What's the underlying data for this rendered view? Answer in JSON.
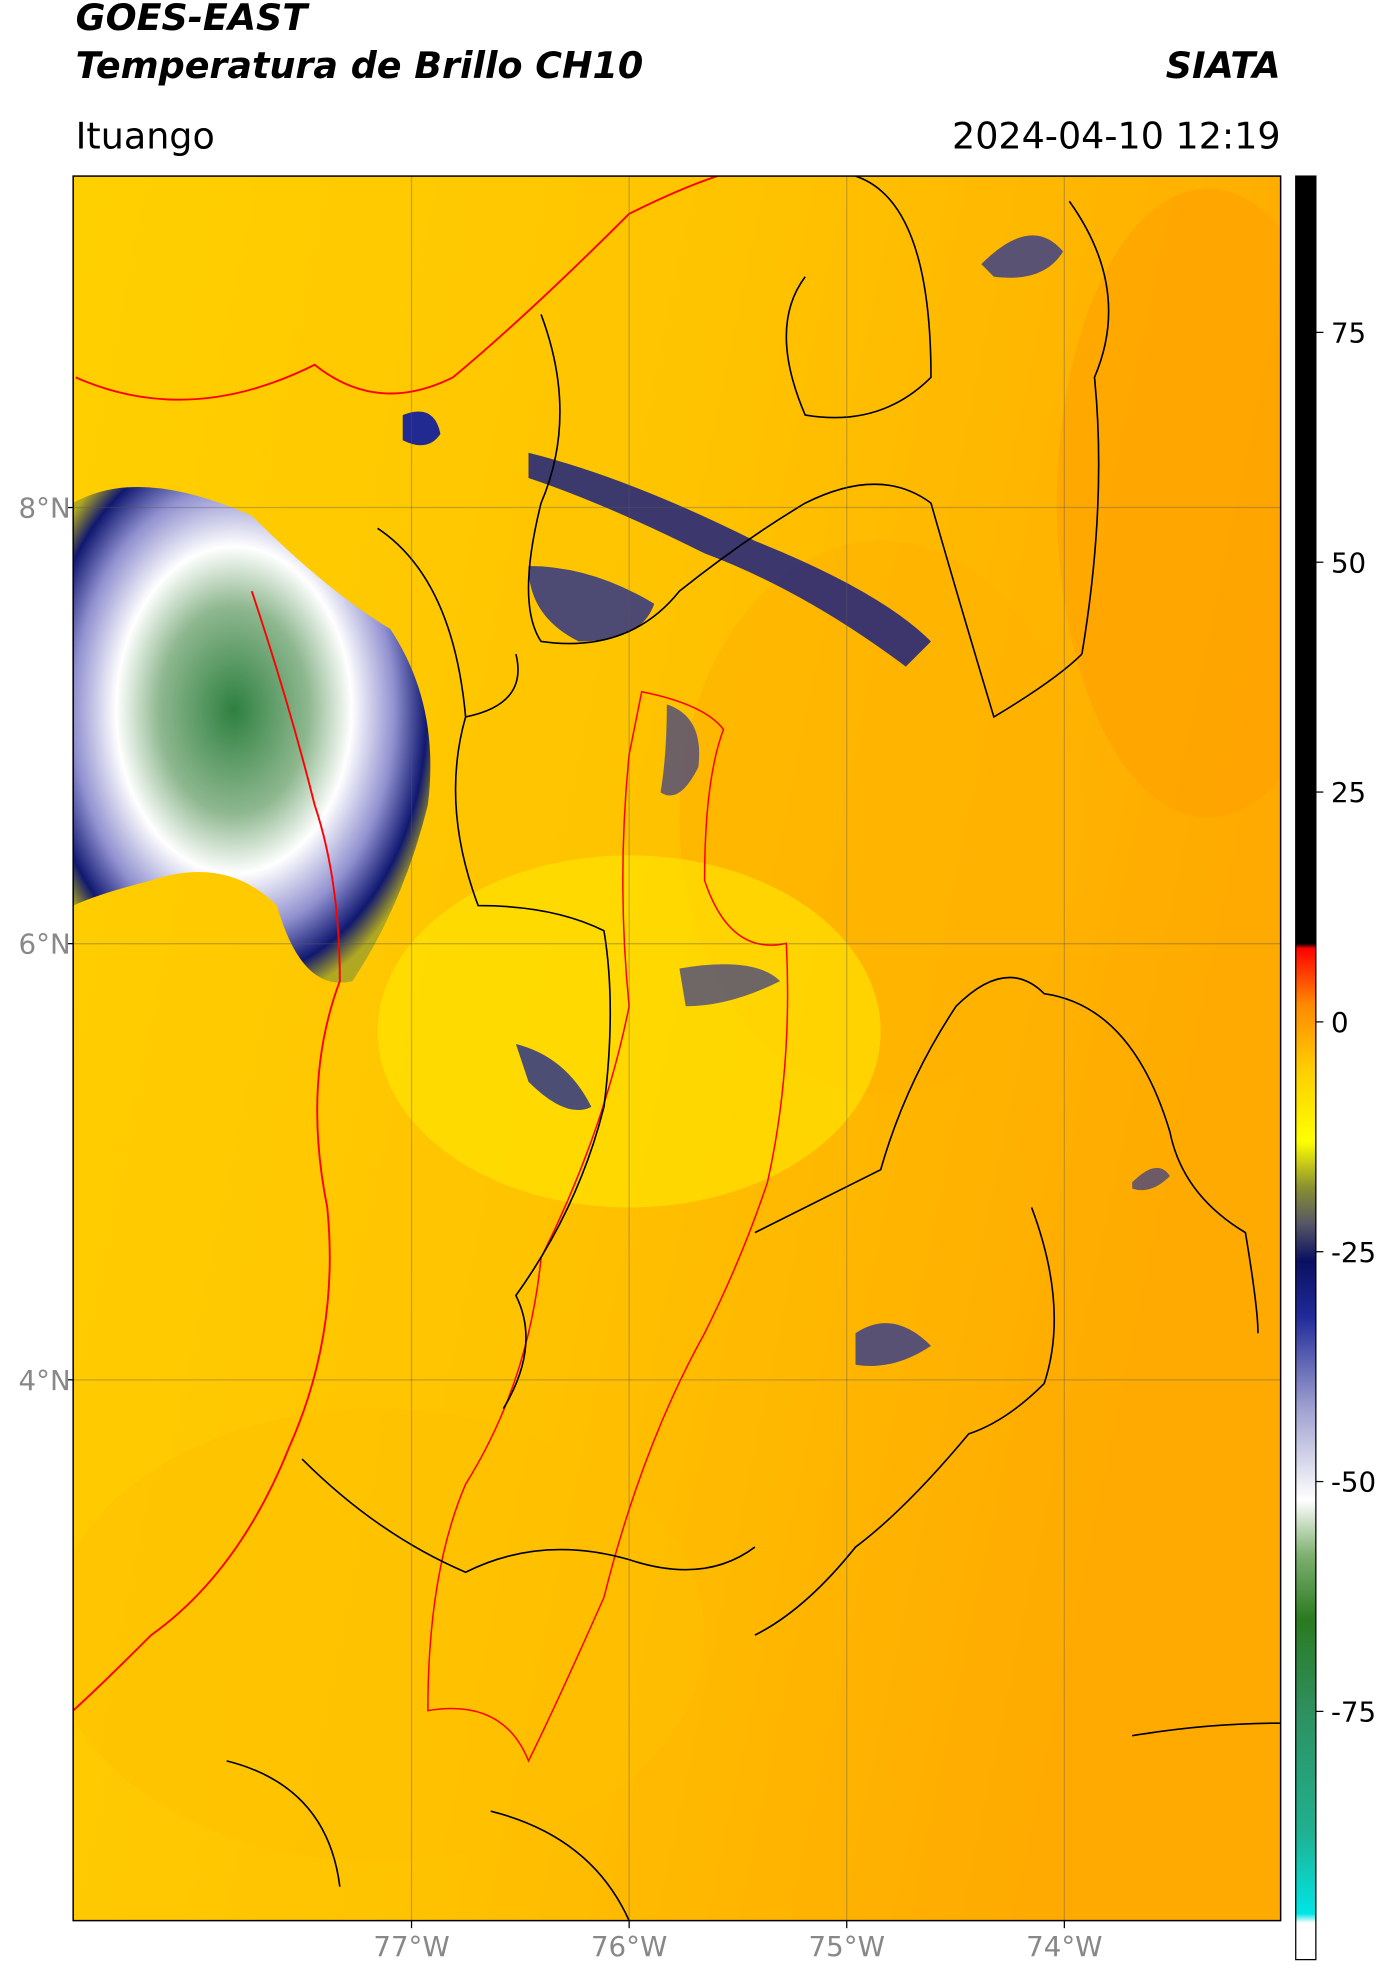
{
  "map": {
    "title": "GOES-EAST",
    "subtitle": "Temperatura de Brillo CH10",
    "source": "SIATA",
    "location": "Ituango",
    "datetime": "2024-04-10 12:19",
    "xlim": [
      -78.555,
      -73.006
    ],
    "ylim": [
      1.52,
      9.52
    ],
    "xticks": [
      {
        "value": -77,
        "label": "77°W"
      },
      {
        "value": -76,
        "label": "76°W"
      },
      {
        "value": -75,
        "label": "75°W"
      },
      {
        "value": -74,
        "label": "74°W"
      }
    ],
    "yticks": [
      {
        "value": 8,
        "label": "8°N"
      },
      {
        "value": 6,
        "label": "6°N"
      },
      {
        "value": 4,
        "label": "4°N"
      }
    ],
    "grid": true,
    "colorbar": {
      "lim": [
        -102,
        92
      ],
      "ticks": [
        75,
        50,
        25,
        0,
        -25,
        -50,
        -75
      ],
      "stops": [
        {
          "value": -102,
          "color": "#ffffff"
        },
        {
          "value": -98,
          "color": "#ffffff"
        },
        {
          "value": -97,
          "color": "#00e5e5"
        },
        {
          "value": -88,
          "color": "#20b090"
        },
        {
          "value": -75,
          "color": "#2e9060"
        },
        {
          "value": -65,
          "color": "#2a7a20"
        },
        {
          "value": -58,
          "color": "#7fb070"
        },
        {
          "value": -52,
          "color": "#ffffff"
        },
        {
          "value": -42,
          "color": "#9fa0d0"
        },
        {
          "value": -32,
          "color": "#202a98"
        },
        {
          "value": -26,
          "color": "#0a1060"
        },
        {
          "value": -22,
          "color": "#555566"
        },
        {
          "value": -18,
          "color": "#8a9030"
        },
        {
          "value": -13,
          "color": "#ffff00"
        },
        {
          "value": -5,
          "color": "#ffcc00"
        },
        {
          "value": 2,
          "color": "#ff8800"
        },
        {
          "value": 8,
          "color": "#ff0000"
        },
        {
          "value": 8.5,
          "color": "#000000"
        },
        {
          "value": 92,
          "color": "#000000"
        }
      ]
    }
  }
}
